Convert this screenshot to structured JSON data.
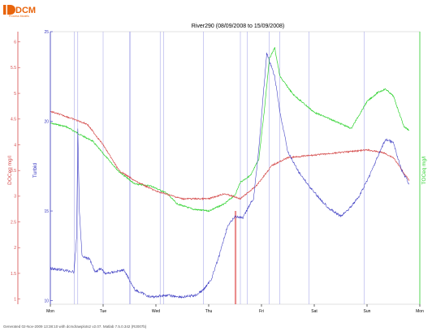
{
  "logo": {
    "text": "DCM",
    "subtitle": "Process Models"
  },
  "footer": "Generated 02-Nov-2009 13:38:10 with dcmdrawplots2 v2.07. Matlab 7.5.0.342 (R2007b)",
  "colors": {
    "doc": "#d44a4a",
    "turbid": "#3535c0",
    "toc": "#2fd22f",
    "vline": "#9a9ae6",
    "vline_red": "#d83030"
  },
  "chart_data": {
    "type": "line",
    "title": "River290 (08/09/2008 to 15/09/2008)",
    "x_ticks": [
      "Mon",
      "Tue",
      "Wed",
      "Thu",
      "Fri",
      "Sat",
      "Sun",
      "Mon"
    ],
    "xlim": [
      0,
      7
    ],
    "axes": {
      "doc": {
        "label": "DOCeq mg/l",
        "ylim": [
          0.9,
          6.2
        ],
        "ticks": [
          1,
          1.5,
          2,
          2.5,
          3,
          3.5,
          4,
          4.5,
          5,
          5.5,
          6
        ],
        "color": "#d44a4a"
      },
      "turbid": {
        "label": "Turbid",
        "ylim": [
          9.8,
          25
        ],
        "ticks": [
          10,
          15,
          20,
          25
        ],
        "color": "#3535c0"
      },
      "toc": {
        "label": "TOCeq mg/l",
        "color": "#2fd22f"
      }
    },
    "series": [
      {
        "name": "DOCeq mg/l",
        "axis": "doc",
        "color": "#d44a4a",
        "x": [
          0,
          0.3,
          0.7,
          1.0,
          1.3,
          1.6,
          2.0,
          2.5,
          3.0,
          3.3,
          3.6,
          3.9,
          4.2,
          4.5,
          5.0,
          5.5,
          6.0,
          6.3,
          6.5,
          6.8
        ],
        "y": [
          4.65,
          4.55,
          4.4,
          4.0,
          3.5,
          3.3,
          3.1,
          2.95,
          2.95,
          3.05,
          2.95,
          3.2,
          3.6,
          3.75,
          3.8,
          3.85,
          3.9,
          3.85,
          3.75,
          3.3
        ]
      },
      {
        "name": "Turbid",
        "axis": "turbid",
        "color": "#3535c0",
        "x": [
          0,
          0.25,
          0.45,
          0.5,
          0.52,
          0.55,
          0.6,
          0.75,
          0.85,
          0.95,
          1.05,
          1.2,
          1.4,
          1.6,
          1.9,
          2.2,
          2.5,
          2.75,
          2.9,
          3.05,
          3.2,
          3.35,
          3.5,
          3.65,
          3.75,
          3.85,
          3.95,
          4.1,
          4.25,
          4.35,
          4.5,
          4.7,
          4.9,
          5.1,
          5.3,
          5.5,
          5.65,
          5.85,
          6.05,
          6.2,
          6.35,
          6.5,
          6.65,
          6.8
        ],
        "y": [
          11.8,
          11.7,
          11.6,
          13.6,
          19.6,
          15.0,
          12.5,
          12.3,
          11.6,
          11.8,
          11.5,
          11.6,
          11.7,
          10.6,
          10.2,
          10.3,
          10.2,
          10.3,
          10.6,
          11.2,
          12.5,
          14.1,
          14.7,
          14.6,
          15.2,
          15.7,
          18.5,
          23.8,
          22.5,
          20.5,
          18.3,
          17.2,
          16.4,
          15.7,
          15.1,
          14.7,
          15.1,
          15.8,
          17.0,
          18.0,
          19.0,
          18.8,
          17.3,
          16.5
        ]
      },
      {
        "name": "TOCeq mg/l",
        "axis": "turbid",
        "color": "#2fd22f",
        "x": [
          0,
          0.3,
          0.6,
          0.8,
          1.0,
          1.3,
          1.6,
          1.9,
          2.2,
          2.4,
          2.7,
          3.0,
          3.3,
          3.5,
          3.6,
          3.8,
          3.95,
          4.05,
          4.15,
          4.25,
          4.35,
          4.6,
          5.0,
          5.4,
          5.7,
          6.0,
          6.2,
          6.35,
          6.5,
          6.7,
          6.8
        ],
        "y": [
          19.9,
          19.7,
          19.2,
          18.9,
          18.2,
          17.2,
          16.5,
          16.4,
          16.0,
          15.4,
          15.1,
          15.0,
          15.4,
          15.9,
          16.6,
          17.0,
          17.9,
          20.5,
          23.5,
          24.1,
          22.5,
          21.5,
          20.5,
          20.0,
          19.6,
          21.1,
          21.6,
          21.8,
          21.4,
          19.7,
          19.5
        ]
      }
    ],
    "vertical_lines_x": [
      0.45,
      0.52,
      1.0,
      1.5,
      1.52,
      2.08,
      2.15,
      2.9,
      3.6,
      3.73,
      4.15,
      4.35,
      4.9,
      5.95
    ],
    "vertical_lines_red_x": [
      3.5,
      3.52
    ]
  }
}
